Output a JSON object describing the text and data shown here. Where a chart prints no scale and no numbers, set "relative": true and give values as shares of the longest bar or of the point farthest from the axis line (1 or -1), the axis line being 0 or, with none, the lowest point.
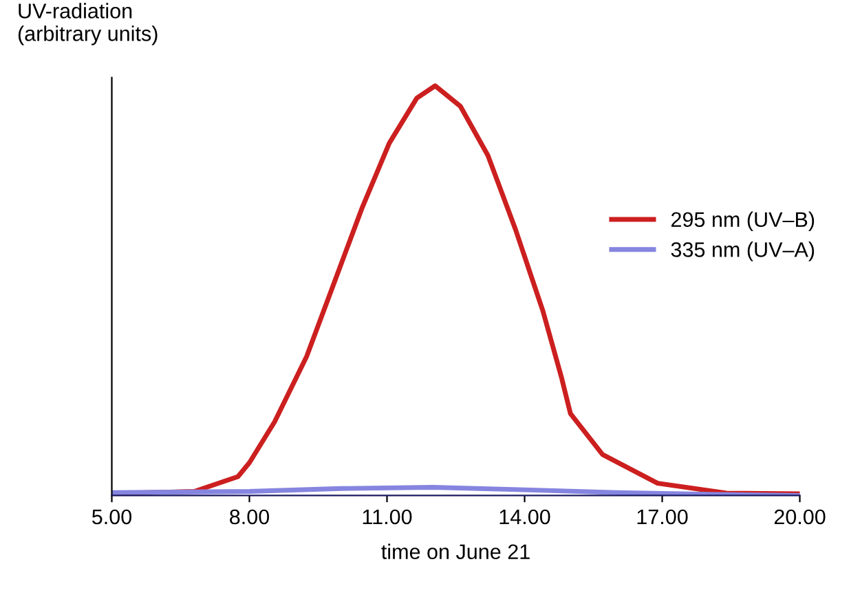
{
  "chart_data": {
    "type": "line",
    "relative": true,
    "ylabel": "UV-radiation\n(arbitrary units)",
    "xlabel": "time on June 21",
    "xlim": [
      5,
      20
    ],
    "xticks": [
      {
        "value": 5,
        "label": "5.00"
      },
      {
        "value": 8,
        "label": "8.00"
      },
      {
        "value": 11,
        "label": "11.00"
      },
      {
        "value": 14,
        "label": "14.00"
      },
      {
        "value": 17,
        "label": "17.00"
      },
      {
        "value": 20,
        "label": "20.00"
      }
    ],
    "legend": "right",
    "grid": false,
    "marker": "none",
    "line_style": "solid",
    "series": [
      {
        "name": "295 nm (UV–B)",
        "color": "#cc1f1f",
        "x": [
          5,
          6.8,
          7.75,
          8,
          8.55,
          9.25,
          9.85,
          10.45,
          11.05,
          11.65,
          12.05,
          12.6,
          13.2,
          13.8,
          14.4,
          14.8,
          15.0,
          15.7,
          16.9,
          18.4,
          20
        ],
        "values": [
          0.005,
          0.01,
          0.046,
          0.08,
          0.18,
          0.34,
          0.52,
          0.7,
          0.86,
          0.97,
          1,
          0.95,
          0.83,
          0.65,
          0.45,
          0.29,
          0.2,
          0.1,
          0.03,
          0.006,
          0.004
        ]
      },
      {
        "name": "335 nm (UV–A)",
        "color": "#8585e0",
        "x": [
          5,
          8,
          10,
          12,
          14,
          16,
          18,
          20
        ],
        "values": [
          0.007,
          0.01,
          0.017,
          0.02,
          0.014,
          0.007,
          0.003,
          0
        ]
      }
    ]
  }
}
